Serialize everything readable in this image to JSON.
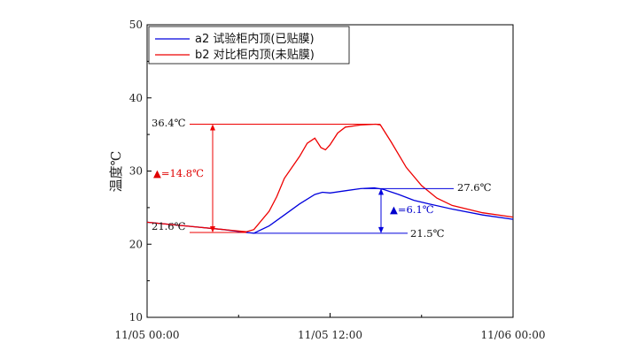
{
  "chart_data": {
    "type": "line",
    "title": "",
    "xlabel": "",
    "ylabel": "温度℃",
    "ylim": [
      10,
      50
    ],
    "yticks": [
      10,
      20,
      30,
      40,
      50
    ],
    "xlim_hours": [
      0,
      24
    ],
    "xtick_labels": [
      "11/05 00:00",
      "11/05 12:00",
      "11/06 00:00"
    ],
    "grid": false,
    "legend_position": "top-left",
    "series": [
      {
        "name": "a2 试验柜内顶(已贴膜)",
        "color": "#0000dd",
        "x_hours": [
          0,
          3,
          5,
          6.5,
          7,
          8,
          9,
          10,
          11,
          11.5,
          12,
          13,
          14,
          14.9,
          15.5,
          16.5,
          17.5,
          18.5,
          20,
          22,
          24
        ],
        "y": [
          23.0,
          22.4,
          22.0,
          21.6,
          21.5,
          22.5,
          24.0,
          25.5,
          26.8,
          27.1,
          27.0,
          27.3,
          27.6,
          27.7,
          27.5,
          26.8,
          26.0,
          25.5,
          24.8,
          24.0,
          23.4
        ]
      },
      {
        "name": "b2 对比柜内顶(未贴膜)",
        "color": "#ee0000",
        "x_hours": [
          0,
          3,
          5,
          6.5,
          7,
          8,
          8.5,
          9,
          10,
          10.5,
          11,
          11.4,
          11.7,
          12,
          12.5,
          13,
          14,
          15,
          15.3,
          16,
          17,
          18,
          19,
          20,
          22,
          24
        ],
        "y": [
          23.0,
          22.4,
          22.0,
          21.7,
          22.0,
          24.5,
          26.5,
          29.0,
          32.0,
          33.8,
          34.5,
          33.2,
          32.9,
          33.6,
          35.2,
          36.0,
          36.3,
          36.4,
          36.3,
          34.0,
          30.5,
          28.0,
          26.3,
          25.3,
          24.3,
          23.7
        ]
      }
    ],
    "annotations": {
      "red_max": "36.4℃",
      "red_min": "21.6℃",
      "red_delta": "▲=14.8℃",
      "blue_max": "27.6℃",
      "blue_min": "21.5℃",
      "blue_delta": "▲=6.1℃"
    }
  },
  "colors": {
    "series_a": "#0000dd",
    "series_b": "#ee0000",
    "axis": "#000000"
  }
}
